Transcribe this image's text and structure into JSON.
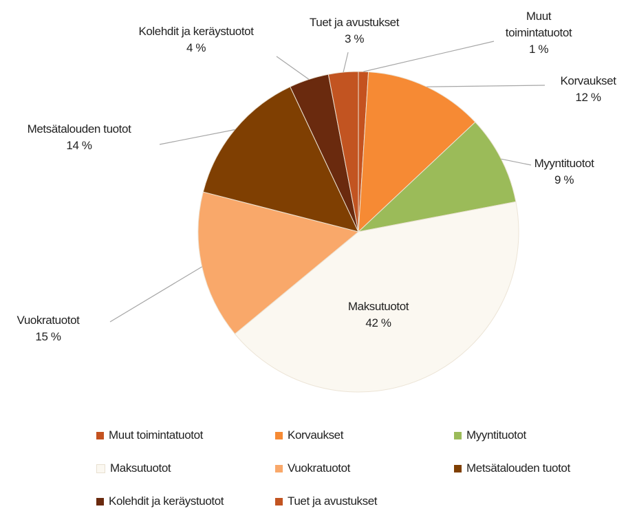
{
  "chart_data": {
    "type": "pie",
    "categories": [
      "Muut toimintatuotot",
      "Korvaukset",
      "Myyntituotot",
      "Maksutuotot",
      "Vuokratuotot",
      "Metsätalouden tuotot",
      "Kolehdit ja keräystuotot",
      "Tuet ja avustukset"
    ],
    "values": [
      1,
      12,
      9,
      42,
      15,
      14,
      4,
      3
    ],
    "value_labels": [
      "1 %",
      "12 %",
      "9 %",
      "42 %",
      "15 %",
      "14 %",
      "4 %",
      "3 %"
    ],
    "colors": [
      "#c4521f",
      "#f68a34",
      "#9bbb59",
      "#fbf8f1",
      "#f9a86a",
      "#7f3f02",
      "#6a2a0e",
      "#c25421"
    ],
    "legend": "bottom"
  }
}
